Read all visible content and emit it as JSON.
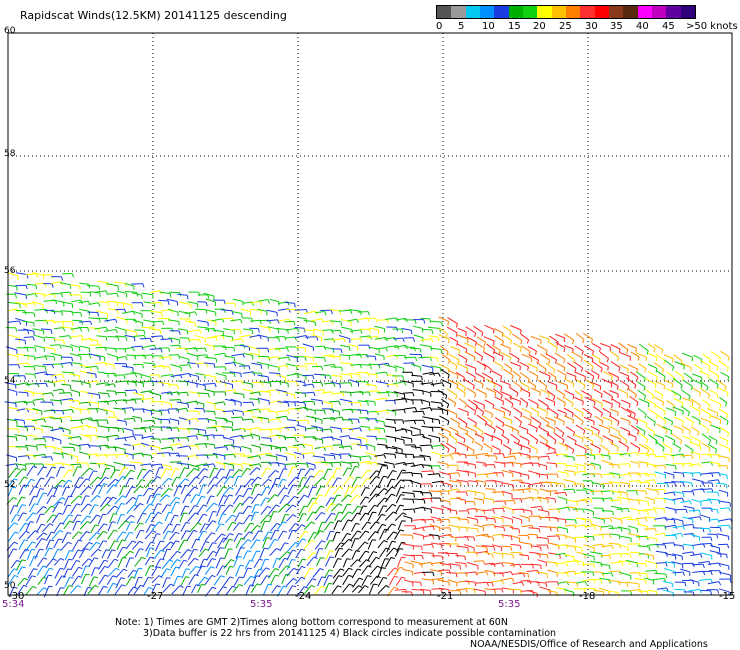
{
  "header": {
    "title": "Rapidscat Winds(12.5KM) 20141125 descending"
  },
  "legend": {
    "labels": [
      "0",
      "5",
      "10",
      "15",
      "20",
      "25",
      "30",
      "35",
      "40",
      "45",
      ">50 knots"
    ],
    "colors": [
      "#555555",
      "#9a9a9a",
      "#00c8f0",
      "#0090ff",
      "#1a3ce0",
      "#00b000",
      "#10d010",
      "#ffff00",
      "#ffc000",
      "#ff8000",
      "#ff3030",
      "#ff0000",
      "#8a3a1a",
      "#5a2a10",
      "#ff00ff",
      "#c000c0",
      "#6000a0",
      "#30007a"
    ]
  },
  "map": {
    "lat_labels": [
      "60",
      "58",
      "56",
      "54",
      "52",
      "50"
    ],
    "lon_labels": [
      "-30",
      "-27",
      "-24",
      "-21",
      "-18",
      "-15"
    ],
    "time_labels": [
      "5:34",
      "5:35",
      "5:35"
    ]
  },
  "footer": {
    "note_line1": "Note: 1) Times are GMT 2)Times along bottom correspond to measurement at 60N",
    "note_line2": "3)Data buffer is 22 hrs from 20141125 4) Black circles indicate possible contamination",
    "credit": "NOAA/NESDIS/Office of Research and Applications"
  }
}
